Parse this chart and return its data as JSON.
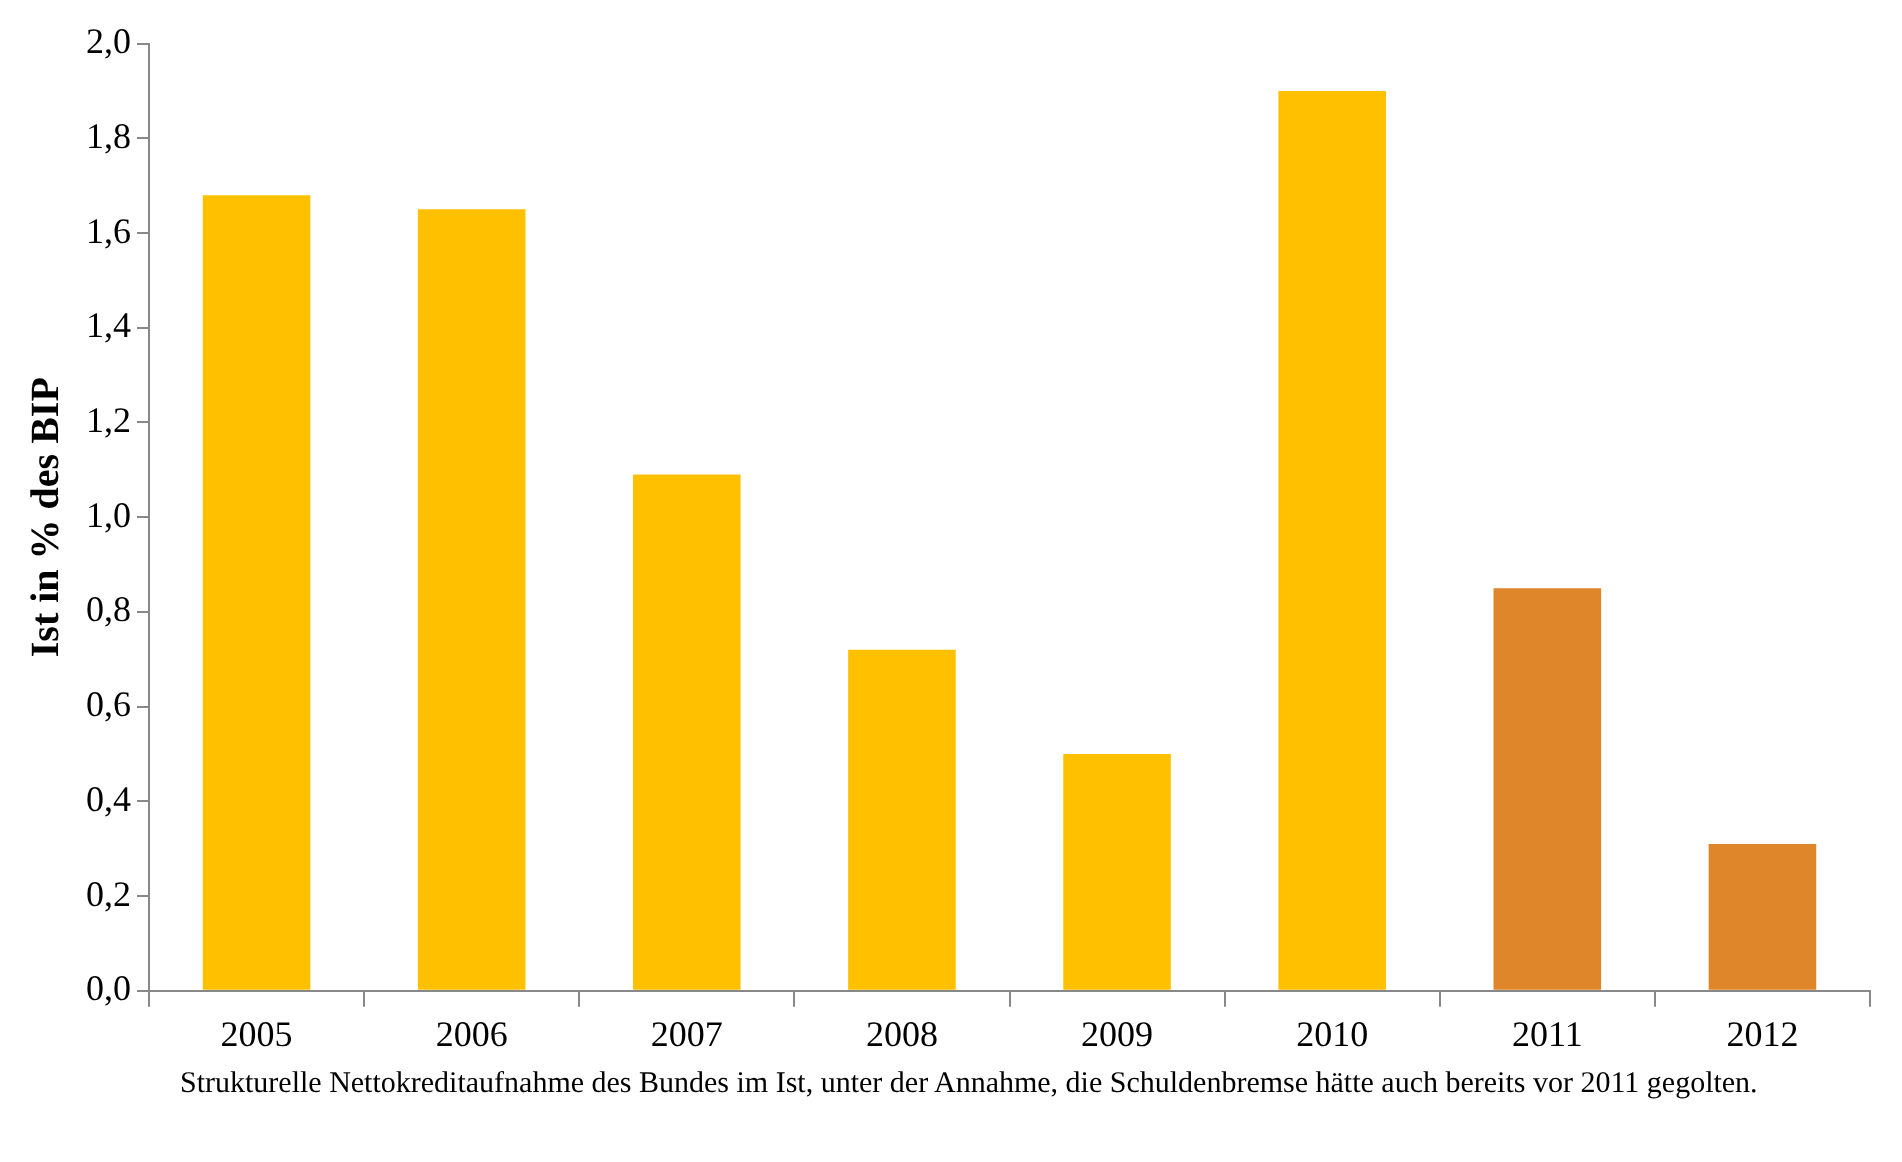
{
  "chart_data": {
    "type": "bar",
    "ylabel": "Ist in % des BIP",
    "categories": [
      "2005",
      "2006",
      "2007",
      "2008",
      "2009",
      "2010",
      "2011",
      "2012"
    ],
    "values": [
      1.68,
      1.65,
      1.09,
      0.72,
      0.5,
      1.9,
      0.85,
      0.31
    ],
    "colors": [
      "#ffc000",
      "#ffc000",
      "#ffc000",
      "#ffc000",
      "#ffc000",
      "#ffc000",
      "#e0862a",
      "#e0862a"
    ],
    "ylim": [
      0,
      2
    ],
    "yticks": [
      {
        "value": 0,
        "label": "0,0"
      },
      {
        "value": 0.2,
        "label": "0,2"
      },
      {
        "value": 0.4,
        "label": "0,4"
      },
      {
        "value": 0.6,
        "label": "0,6"
      },
      {
        "value": 0.8,
        "label": "0,8"
      },
      {
        "value": 1,
        "label": "1,0"
      },
      {
        "value": 1.2,
        "label": "1,2"
      },
      {
        "value": 1.4,
        "label": "1,4"
      },
      {
        "value": 1.6,
        "label": "1,6"
      },
      {
        "value": 1.8,
        "label": "1,8"
      },
      {
        "value": 2,
        "label": "2,0"
      }
    ],
    "grid": false,
    "legend": false,
    "annotations": [
      "Strukturelle Nettokreditaufnahme des Bundes im Ist, unter der Annahme, die Schuldenbremse hätte auch bereits vor 2011 gegolten."
    ]
  }
}
